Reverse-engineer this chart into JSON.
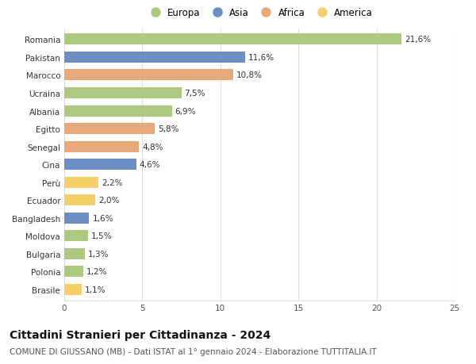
{
  "countries": [
    "Romania",
    "Pakistan",
    "Marocco",
    "Ucraina",
    "Albania",
    "Egitto",
    "Senegal",
    "Cina",
    "Perù",
    "Ecuador",
    "Bangladesh",
    "Moldova",
    "Bulgaria",
    "Polonia",
    "Brasile"
  ],
  "values": [
    21.6,
    11.6,
    10.8,
    7.5,
    6.9,
    5.8,
    4.8,
    4.6,
    2.2,
    2.0,
    1.6,
    1.5,
    1.3,
    1.2,
    1.1
  ],
  "continents": [
    "Europa",
    "Asia",
    "Africa",
    "Europa",
    "Europa",
    "Africa",
    "Africa",
    "Asia",
    "America",
    "America",
    "Asia",
    "Europa",
    "Europa",
    "Europa",
    "America"
  ],
  "continent_colors": {
    "Europa": "#adc97f",
    "Asia": "#6b8fc2",
    "Africa": "#e8a97a",
    "America": "#f5d06a"
  },
  "legend_order": [
    "Europa",
    "Asia",
    "Africa",
    "America"
  ],
  "xlim": [
    0,
    25
  ],
  "xticks": [
    0,
    5,
    10,
    15,
    20,
    25
  ],
  "title": "Cittadini Stranieri per Cittadinanza - 2024",
  "subtitle": "COMUNE DI GIUSSANO (MB) - Dati ISTAT al 1° gennaio 2024 - Elaborazione TUTTITALIA.IT",
  "title_fontsize": 10,
  "subtitle_fontsize": 7.5,
  "label_fontsize": 7.5,
  "tick_fontsize": 7.5,
  "legend_fontsize": 8.5,
  "bar_height": 0.62,
  "background_color": "#ffffff",
  "grid_color": "#dddddd"
}
